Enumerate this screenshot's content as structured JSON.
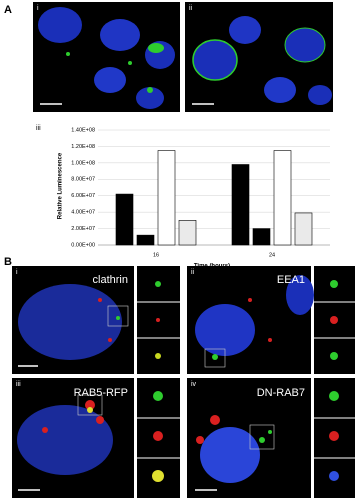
{
  "panel_a": {
    "label": "A",
    "images": [
      {
        "label": "i"
      },
      {
        "label": "ii"
      }
    ]
  },
  "chart_data": {
    "type": "bar",
    "panel_label": "iii",
    "ylabel": "Relative Luminescence",
    "xlabel": "Time (hours)",
    "categories": [
      "16",
      "24"
    ],
    "series": [
      {
        "color": "#000000",
        "values": [
          62000000,
          98000000
        ]
      },
      {
        "color": "#000000",
        "values": [
          12000000,
          20000000
        ]
      },
      {
        "color": "#ffffff",
        "values": [
          115000000,
          115000000
        ]
      },
      {
        "color": "#e6e6e6",
        "values": [
          30000000,
          39000000
        ]
      }
    ],
    "ylim": [
      0,
      140000000
    ],
    "yticks": [
      {
        "value": 0,
        "label": "0.00E+00"
      },
      {
        "value": 20000000,
        "label": "2.00E+07"
      },
      {
        "value": 40000000,
        "label": "4.00E+07"
      },
      {
        "value": 60000000,
        "label": "6.00E+07"
      },
      {
        "value": 80000000,
        "label": "8.00E+07"
      },
      {
        "value": 100000000,
        "label": "1.00E+08"
      },
      {
        "value": 120000000,
        "label": "1.20E+08"
      },
      {
        "value": 140000000,
        "label": "1.40E+08"
      }
    ],
    "grid": true
  },
  "panel_b": {
    "label": "B",
    "images": [
      {
        "label": "i",
        "title": "clathrin"
      },
      {
        "label": "ii",
        "title": "EEA1"
      },
      {
        "label": "iii",
        "title": "RAB5-RFP"
      },
      {
        "label": "iv",
        "title": "DN-RAB7"
      }
    ]
  }
}
